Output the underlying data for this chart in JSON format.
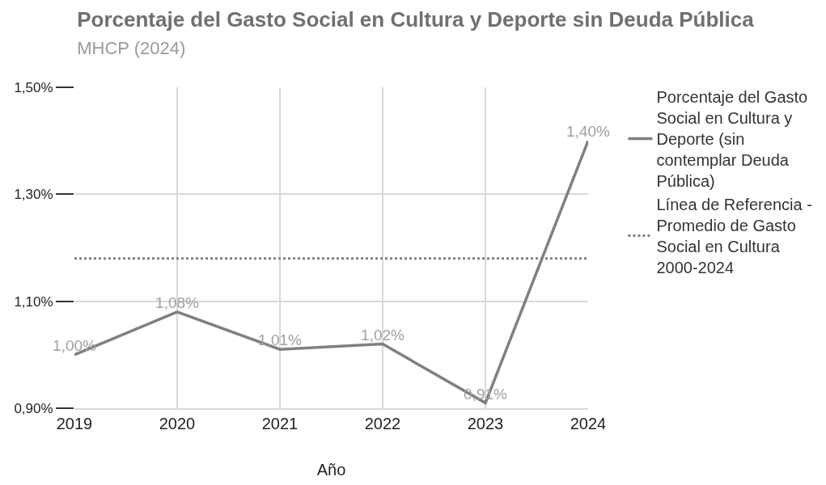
{
  "chart_data": {
    "type": "line",
    "title": "Porcentaje del Gasto Social en Cultura y Deporte sin Deuda Pública",
    "subtitle": "MHCP (2024)",
    "xlabel": "Año",
    "x": [
      2019,
      2020,
      2021,
      2022,
      2023,
      2024
    ],
    "xlim": [
      2019,
      2024
    ],
    "xticks": [
      2019,
      2020,
      2021,
      2022,
      2023,
      2024
    ],
    "ylim": [
      0.9,
      1.5
    ],
    "yticks": [
      {
        "value": 0.9,
        "label": "0,90%"
      },
      {
        "value": 1.1,
        "label": "1,10%"
      },
      {
        "value": 1.3,
        "label": "1,30%"
      },
      {
        "value": 1.5,
        "label": "1,50%"
      }
    ],
    "grid": true,
    "legend": "top right",
    "marker": "none",
    "series": [
      {
        "name": "Porcentaje del Gasto Social en Cultura y Deporte (sin contemplar Deuda Pública)",
        "color": "#808080",
        "line_style": "solid",
        "values": [
          1.0,
          1.08,
          1.01,
          1.02,
          0.91,
          1.4
        ],
        "value_labels": [
          "1,00%",
          "1,08%",
          "1,01%",
          "1,02%",
          "0,91%",
          "1,40%"
        ]
      },
      {
        "name": "Línea de Referencia - Promedio de Gasto Social en Cultura 2000-2024",
        "color": "#808080",
        "line_style": "dotted",
        "values": [
          1.18,
          1.18,
          1.18,
          1.18,
          1.18,
          1.18
        ]
      }
    ]
  }
}
